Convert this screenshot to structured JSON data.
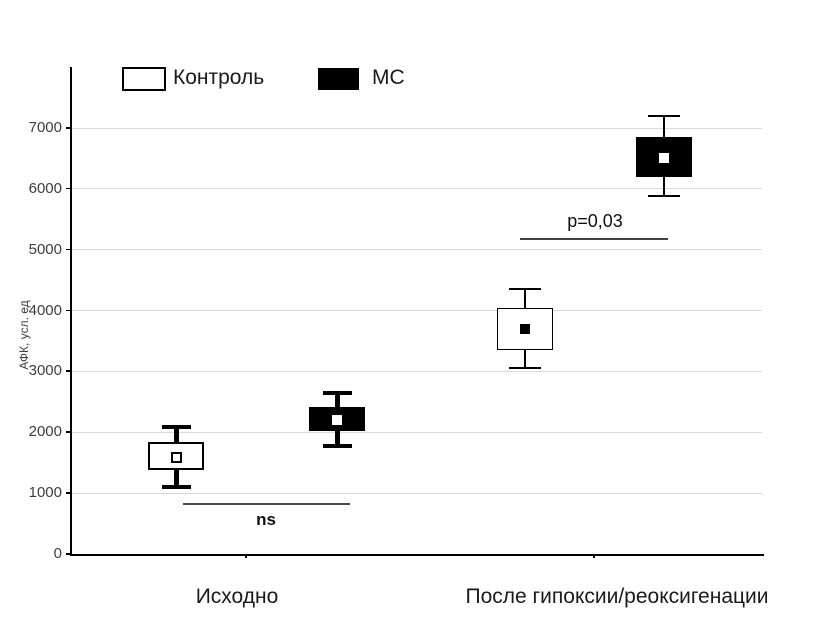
{
  "chart_data": {
    "type": "boxplot",
    "title": "",
    "xlabel": "",
    "ylabel": "АФК, усл. ед",
    "ylim": [
      0,
      8000
    ],
    "yticks": [
      0,
      1000,
      2000,
      3000,
      4000,
      5000,
      6000,
      7000
    ],
    "grid": "horizontal",
    "legend_position": "top-inside",
    "categories": [
      "Исходно",
      "После гипоксии/реоксигенации"
    ],
    "legend": [
      {
        "label": "Контроль",
        "fill": "#ffffff"
      },
      {
        "label": "МС",
        "fill": "#000000"
      }
    ],
    "series": [
      {
        "name": "Контроль",
        "fill": "#ffffff",
        "points": [
          {
            "category": "Исходно",
            "whisker_low": 1100,
            "box_low": 1380,
            "mean": 1590,
            "box_high": 1840,
            "whisker_high": 2080,
            "marker": "open-square"
          },
          {
            "category": "После гипоксии/реоксигенации",
            "whisker_low": 3050,
            "box_low": 3360,
            "mean": 3700,
            "box_high": 4040,
            "whisker_high": 4360,
            "marker": "black-square"
          }
        ]
      },
      {
        "name": "МС",
        "fill": "#000000",
        "points": [
          {
            "category": "Исходно",
            "whisker_low": 1780,
            "box_low": 2020,
            "mean": 2200,
            "box_high": 2410,
            "whisker_high": 2650,
            "marker": "white-square"
          },
          {
            "category": "После гипоксии/реоксигенации",
            "whisker_low": 5890,
            "box_low": 6200,
            "mean": 6510,
            "box_high": 6850,
            "whisker_high": 7200,
            "marker": "white-square"
          }
        ]
      }
    ],
    "annotations": [
      {
        "label": "ns",
        "category": "Исходно",
        "line_y": 840,
        "label_position": "below-line"
      },
      {
        "label": "p=0,03",
        "category": "После гипоксии/реоксигенации",
        "line_y": 5190,
        "label_position": "above-line"
      }
    ],
    "colors": {
      "axis": "#000000",
      "gridline": "#d9d9d9",
      "tick_label": "#3d3d3d",
      "ns_line": "#4a4a4a",
      "p_line": "#404040"
    }
  }
}
